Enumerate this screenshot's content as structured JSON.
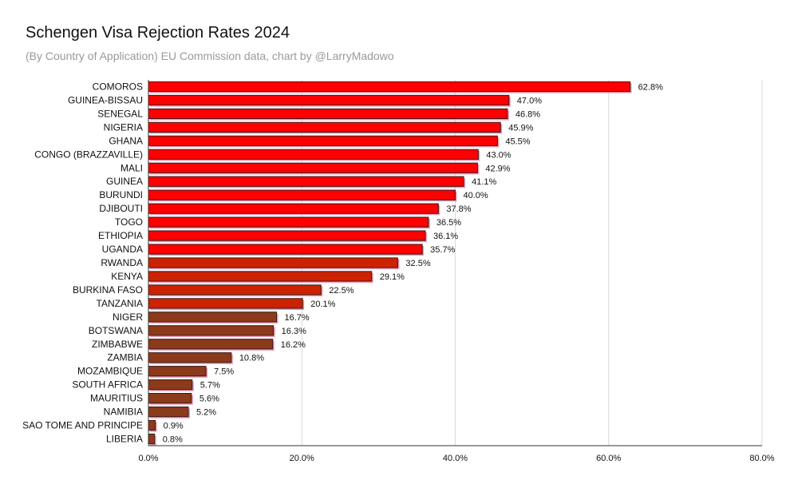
{
  "chart_data": {
    "type": "bar",
    "orientation": "horizontal",
    "title": "Schengen Visa Rejection Rates 2024",
    "subtitle": "(By Country of Application) EU Commission data, chart by @LarryMadowo",
    "xlabel": "",
    "ylabel": "",
    "xlim": [
      0,
      80
    ],
    "xticks": [
      "0.0%",
      "20.0%",
      "40.0%",
      "60.0%",
      "80.0%"
    ],
    "grid": true,
    "legend": "none",
    "categories": [
      "COMOROS",
      "GUINEA-BISSAU",
      "SENEGAL",
      "NIGERIA",
      "GHANA",
      "CONGO (BRAZZAVILLE)",
      "MALI",
      "GUINEA",
      "BURUNDI",
      "DJIBOUTI",
      "TOGO",
      "ETHIOPIA",
      "UGANDA",
      "RWANDA",
      "KENYA",
      "BURKINA FASO",
      "TANZANIA",
      "NIGER",
      "BOTSWANA",
      "ZIMBABWE",
      "ZAMBIA",
      "MOZAMBIQUE",
      "SOUTH AFRICA",
      "MAURITIUS",
      "NAMIBIA",
      "SAO TOME AND PRINCIPE",
      "LIBERIA"
    ],
    "values": [
      62.8,
      47.0,
      46.8,
      45.9,
      45.5,
      43.0,
      42.9,
      41.1,
      40.0,
      37.8,
      36.5,
      36.1,
      35.7,
      32.5,
      29.1,
      22.5,
      20.1,
      16.7,
      16.3,
      16.2,
      10.8,
      7.5,
      5.7,
      5.6,
      5.2,
      0.9,
      0.8
    ],
    "value_labels": [
      "62.8%",
      "47.0%",
      "46.8%",
      "45.9%",
      "45.5%",
      "43.0%",
      "42.9%",
      "41.1%",
      "40.0%",
      "37.8%",
      "36.5%",
      "36.1%",
      "35.7%",
      "32.5%",
      "29.1%",
      "22.5%",
      "20.1%",
      "16.7%",
      "16.3%",
      "16.2%",
      "10.8%",
      "7.5%",
      "5.7%",
      "5.6%",
      "5.2%",
      "0.9%",
      "0.8%"
    ],
    "colors": {
      "bar_high": "#ff0000",
      "bar_mid": "#cc2200",
      "bar_low": "#8b3a1a",
      "bar_shadow": "#e0457a",
      "grid": "#d9d9d9",
      "axis": "#333333"
    }
  }
}
